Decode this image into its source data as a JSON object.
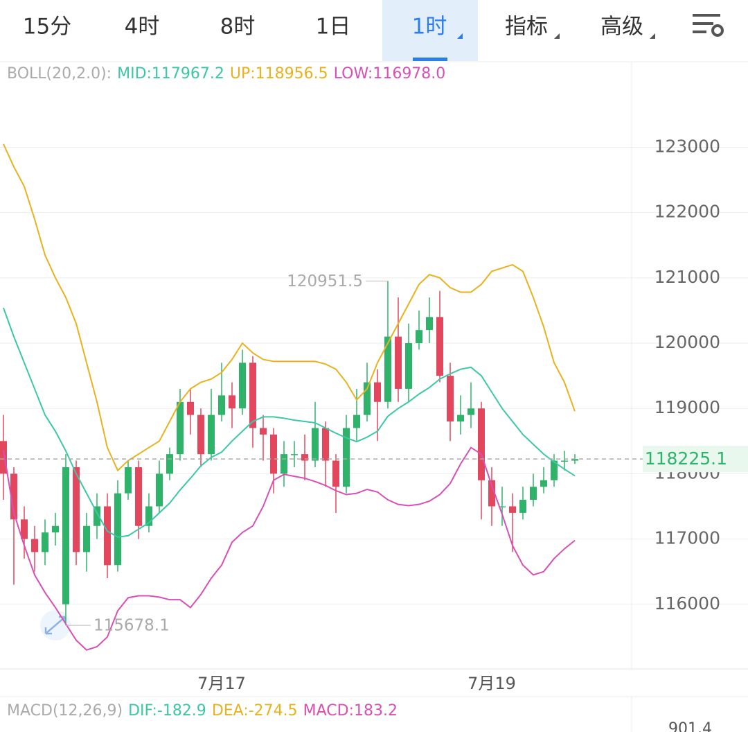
{
  "tabs": [
    "15分",
    "4时",
    "8时",
    "1日",
    "1时",
    "指标",
    "高级"
  ],
  "active_tab": 4,
  "chart_data": {
    "type": "candlestick",
    "indicator_header": [
      "BOLL(20,2.0):",
      "MID:117967.2",
      "UP:118956.5",
      "LOW:116978.0"
    ],
    "categories": [
      null,
      null,
      null,
      null,
      null,
      null,
      null,
      null,
      null,
      null,
      null,
      null,
      null,
      null,
      null,
      null,
      null,
      null,
      null,
      null,
      null,
      "7月17",
      null,
      null,
      null,
      null,
      null,
      null,
      null,
      null,
      null,
      null,
      null,
      null,
      null,
      null,
      null,
      null,
      null,
      null,
      null,
      null,
      null,
      null,
      null,
      null,
      null,
      "7月19",
      null,
      null,
      null,
      null,
      null,
      null,
      null,
      null
    ],
    "open": [
      118500,
      118000,
      117300,
      117000,
      116800,
      117100,
      116000,
      118100,
      116800,
      117200,
      117500,
      116600,
      117700,
      118100,
      117200,
      117500,
      118000,
      118300,
      119100,
      118900,
      118300,
      118900,
      119200,
      119000,
      119700,
      118700,
      118600,
      118000,
      118300,
      118300,
      118200,
      118700,
      118200,
      117800,
      118700,
      118900,
      119400,
      119100,
      120100,
      119300,
      120000,
      120200,
      120400,
      119500,
      118800,
      118900,
      119000,
      117900,
      117500,
      117500,
      117400,
      117600,
      117800,
      117900,
      118200,
      118200
    ],
    "high": [
      118900,
      118100,
      117500,
      117200,
      117300,
      117400,
      118300,
      118200,
      117400,
      117700,
      117700,
      117900,
      118200,
      118200,
      117700,
      118200,
      118400,
      119300,
      119300,
      119000,
      119300,
      119700,
      119400,
      119900,
      119800,
      118900,
      118700,
      118500,
      118500,
      118600,
      119100,
      118800,
      118300,
      118900,
      119300,
      119700,
      119600,
      120951.5,
      120700,
      120300,
      120500,
      120700,
      120800,
      119700,
      119200,
      119400,
      119100,
      118100,
      117800,
      117700,
      117800,
      118000,
      118100,
      118300,
      118350,
      118300
    ],
    "low": [
      117600,
      116300,
      116700,
      116500,
      116600,
      116900,
      115678.1,
      116600,
      116500,
      117000,
      116400,
      116500,
      117600,
      117000,
      117100,
      117400,
      117900,
      118200,
      118600,
      118100,
      118200,
      118800,
      118700,
      118900,
      118400,
      118200,
      117700,
      117800,
      118100,
      117900,
      118100,
      117800,
      117400,
      117700,
      118500,
      118800,
      118500,
      119000,
      119100,
      119100,
      119900,
      120000,
      119400,
      118500,
      118600,
      118700,
      117300,
      117200,
      117200,
      116800,
      117300,
      117500,
      117700,
      117800,
      118050,
      118150
    ],
    "close": [
      118000,
      117300,
      117000,
      116800,
      117100,
      117200,
      118100,
      116800,
      117200,
      117500,
      116600,
      117700,
      118100,
      117200,
      117500,
      118000,
      118300,
      119100,
      118900,
      118300,
      118900,
      119200,
      119000,
      119700,
      118700,
      118600,
      118000,
      118300,
      118300,
      118200,
      118700,
      118200,
      117800,
      118700,
      118900,
      119400,
      119100,
      120100,
      119300,
      120000,
      120200,
      120400,
      119500,
      118800,
      118900,
      119000,
      117900,
      117500,
      117500,
      117400,
      117600,
      117800,
      117900,
      118200,
      118200,
      118225.1
    ],
    "up_color": "#2fb36b",
    "down_color": "#e2475d",
    "series": [
      {
        "color": "#e8b21e",
        "values": [
          123050,
          122700,
          122400,
          121900,
          121350,
          121000,
          120700,
          120300,
          119700,
          119100,
          118400,
          118050,
          118200,
          118300,
          118400,
          118500,
          118800,
          119100,
          119300,
          119400,
          119450,
          119550,
          119750,
          120000,
          119850,
          119750,
          119720,
          119720,
          119720,
          119720,
          119720,
          119680,
          119600,
          119400,
          119130,
          119300,
          119700,
          120000,
          120300,
          120600,
          120900,
          121050,
          121000,
          120850,
          120780,
          120780,
          120900,
          121100,
          121150,
          121200,
          121100,
          120700,
          120250,
          119700,
          119400,
          118956.5
        ]
      },
      {
        "color": "#3cc7a6",
        "values": [
          120540,
          120100,
          119700,
          119300,
          118900,
          118650,
          118350,
          118000,
          117700,
          117400,
          117120,
          117030,
          117050,
          117150,
          117250,
          117400,
          117550,
          117750,
          117930,
          118120,
          118250,
          118330,
          118500,
          118650,
          118800,
          118870,
          118870,
          118850,
          118820,
          118800,
          118780,
          118700,
          118620,
          118550,
          118490,
          118560,
          118650,
          118880,
          119000,
          119100,
          119220,
          119320,
          119450,
          119530,
          119600,
          119630,
          119500,
          119250,
          119000,
          118800,
          118600,
          118450,
          118300,
          118180,
          118070,
          117967.2
        ]
      },
      {
        "color": "#d84fb5",
        "values": [
          118360,
          117400,
          116900,
          116450,
          116180,
          115950,
          115700,
          115450,
          115300,
          115350,
          115500,
          115900,
          116100,
          116130,
          116130,
          116110,
          116070,
          116070,
          115950,
          116150,
          116400,
          116600,
          116950,
          117100,
          117200,
          117500,
          117900,
          117990,
          117960,
          117930,
          117880,
          117820,
          117740,
          117680,
          117700,
          117760,
          117720,
          117600,
          117530,
          117510,
          117530,
          117580,
          117680,
          117850,
          118150,
          118400,
          118300,
          117820,
          117380,
          116900,
          116600,
          116450,
          116500,
          116700,
          116850,
          116978
        ]
      }
    ],
    "ylim": [
      115010,
      124300
    ],
    "yticks": [
      116000,
      117000,
      118000,
      119000,
      120000,
      121000,
      122000,
      123000
    ],
    "grid": true
  },
  "macd_header": [
    "MACD(12,26,9)",
    "DIF:-182.9",
    "DEA:-274.5",
    "MACD:183.2"
  ],
  "macd_axis_label": "901.4"
}
